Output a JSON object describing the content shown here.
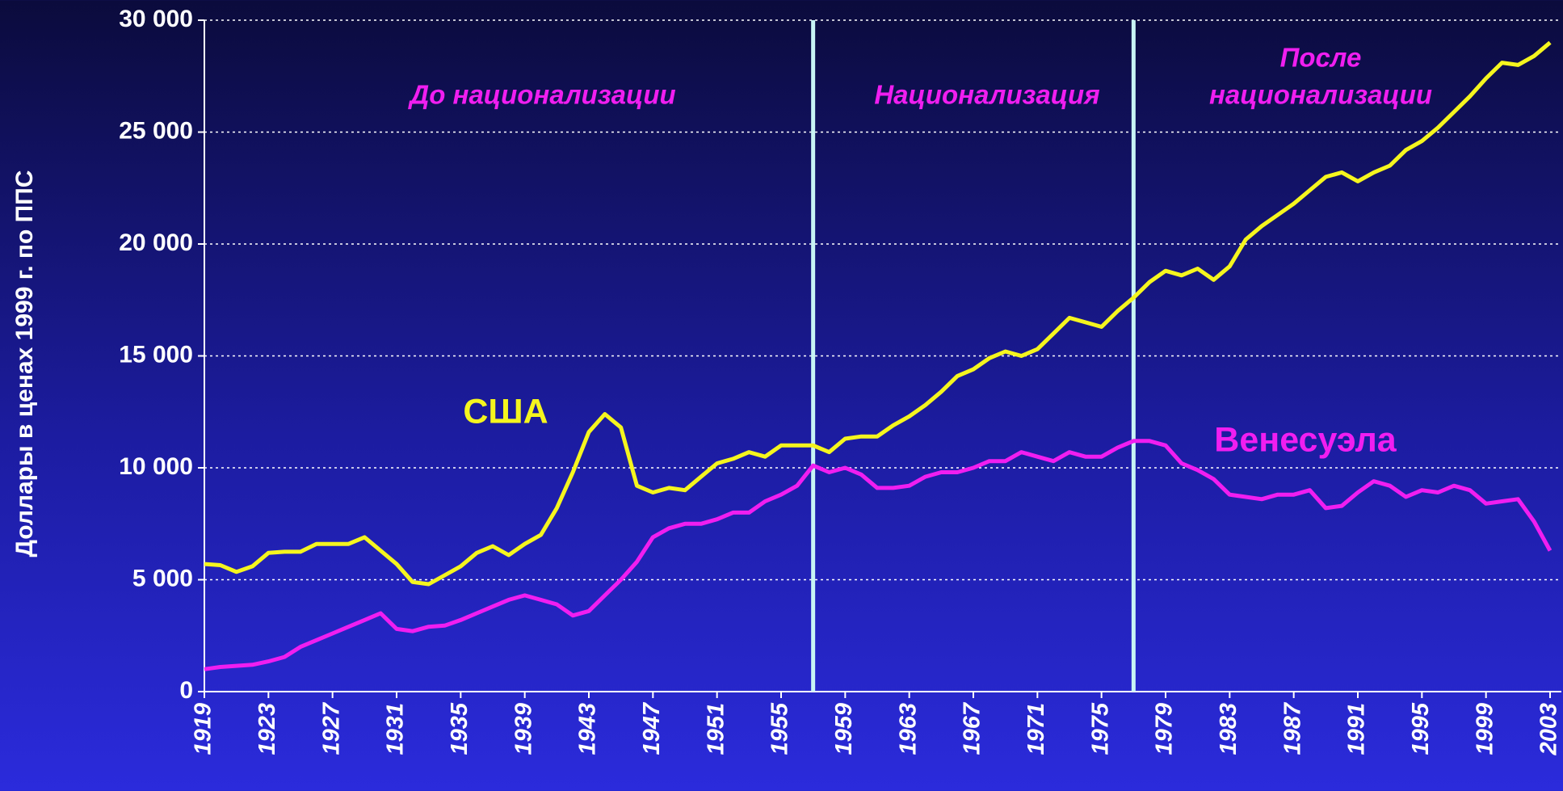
{
  "chart_data": {
    "type": "line",
    "y_label": "Доллары в ценах 1999 г. по ППС",
    "x": [
      1919,
      1920,
      1921,
      1922,
      1923,
      1924,
      1925,
      1926,
      1927,
      1928,
      1929,
      1930,
      1931,
      1932,
      1933,
      1934,
      1935,
      1936,
      1937,
      1938,
      1939,
      1940,
      1941,
      1942,
      1943,
      1944,
      1945,
      1946,
      1947,
      1948,
      1949,
      1950,
      1951,
      1952,
      1953,
      1954,
      1955,
      1956,
      1957,
      1958,
      1959,
      1960,
      1961,
      1962,
      1963,
      1964,
      1965,
      1966,
      1967,
      1968,
      1969,
      1970,
      1971,
      1972,
      1973,
      1974,
      1975,
      1976,
      1977,
      1978,
      1979,
      1980,
      1981,
      1982,
      1983,
      1984,
      1985,
      1986,
      1987,
      1988,
      1989,
      1990,
      1991,
      1992,
      1993,
      1994,
      1995,
      1996,
      1997,
      1998,
      1999,
      2000,
      2001,
      2002,
      2003
    ],
    "series": [
      {
        "name": "США",
        "color": "#f5f51e",
        "values": [
          5700,
          5650,
          5350,
          5600,
          6200,
          6250,
          6250,
          6600,
          6600,
          6600,
          6900,
          6300,
          5700,
          4900,
          4800,
          5200,
          5600,
          6200,
          6500,
          6100,
          6600,
          7000,
          8200,
          9800,
          11600,
          12400,
          11800,
          9200,
          8900,
          9100,
          9000,
          9600,
          10200,
          10400,
          10700,
          10500,
          11000,
          11000,
          11000,
          10700,
          11300,
          11400,
          11400,
          11900,
          12300,
          12800,
          13400,
          14100,
          14400,
          14900,
          15200,
          15000,
          15300,
          16000,
          16700,
          16500,
          16300,
          17000,
          17600,
          18300,
          18800,
          18600,
          18900,
          18400,
          19000,
          20200,
          20800,
          21300,
          21800,
          22400,
          23000,
          23200,
          22800,
          23200,
          23500,
          24200,
          24600,
          25200,
          25900,
          26600,
          27400,
          28100,
          28000,
          28400,
          29000
        ]
      },
      {
        "name": "Венесуэла",
        "color": "#f01ef0",
        "values": [
          1000,
          1100,
          1150,
          1200,
          1350,
          1550,
          2000,
          2300,
          2600,
          2900,
          3200,
          3500,
          2800,
          2700,
          2900,
          2950,
          3200,
          3500,
          3800,
          4100,
          4300,
          4100,
          3900,
          3400,
          3600,
          4300,
          5000,
          5800,
          6900,
          7300,
          7500,
          7500,
          7700,
          8000,
          8000,
          8500,
          8800,
          9200,
          10100,
          9800,
          10000,
          9700,
          9100,
          9100,
          9200,
          9600,
          9800,
          9800,
          10000,
          10300,
          10300,
          10700,
          10500,
          10300,
          10700,
          10500,
          10500,
          10900,
          11200,
          11200,
          11000,
          10200,
          9900,
          9500,
          8800,
          8700,
          8600,
          8800,
          8800,
          9000,
          8200,
          8300,
          8900,
          9400,
          9200,
          8700,
          9000,
          8900,
          9200,
          9000,
          8400,
          8500,
          8600,
          7600,
          6300
        ]
      }
    ],
    "xlim": [
      1919,
      2003
    ],
    "xticks": [
      1919,
      1923,
      1927,
      1931,
      1935,
      1939,
      1943,
      1947,
      1951,
      1955,
      1959,
      1963,
      1967,
      1971,
      1975,
      1979,
      1983,
      1987,
      1991,
      1995,
      1999,
      2003
    ],
    "ylim": [
      0,
      30000
    ],
    "yticks": [
      0,
      {
        "value": 5000,
        "label": "5 000"
      },
      {
        "value": 10000,
        "label": "10 000"
      },
      {
        "value": 15000,
        "label": "15 000"
      },
      {
        "value": 20000,
        "label": "20 000"
      },
      {
        "value": 25000,
        "label": "25 000"
      },
      {
        "value": 30000,
        "label": "30 000"
      }
    ],
    "grid": true,
    "vlines": [
      1957,
      1977
    ],
    "vline_color": "#c8f5f5",
    "annotation_color": "#f01ef0",
    "annotations": [
      [
        "До национализации"
      ],
      [
        "Национализация"
      ],
      [
        "После",
        "национализации"
      ]
    ]
  }
}
